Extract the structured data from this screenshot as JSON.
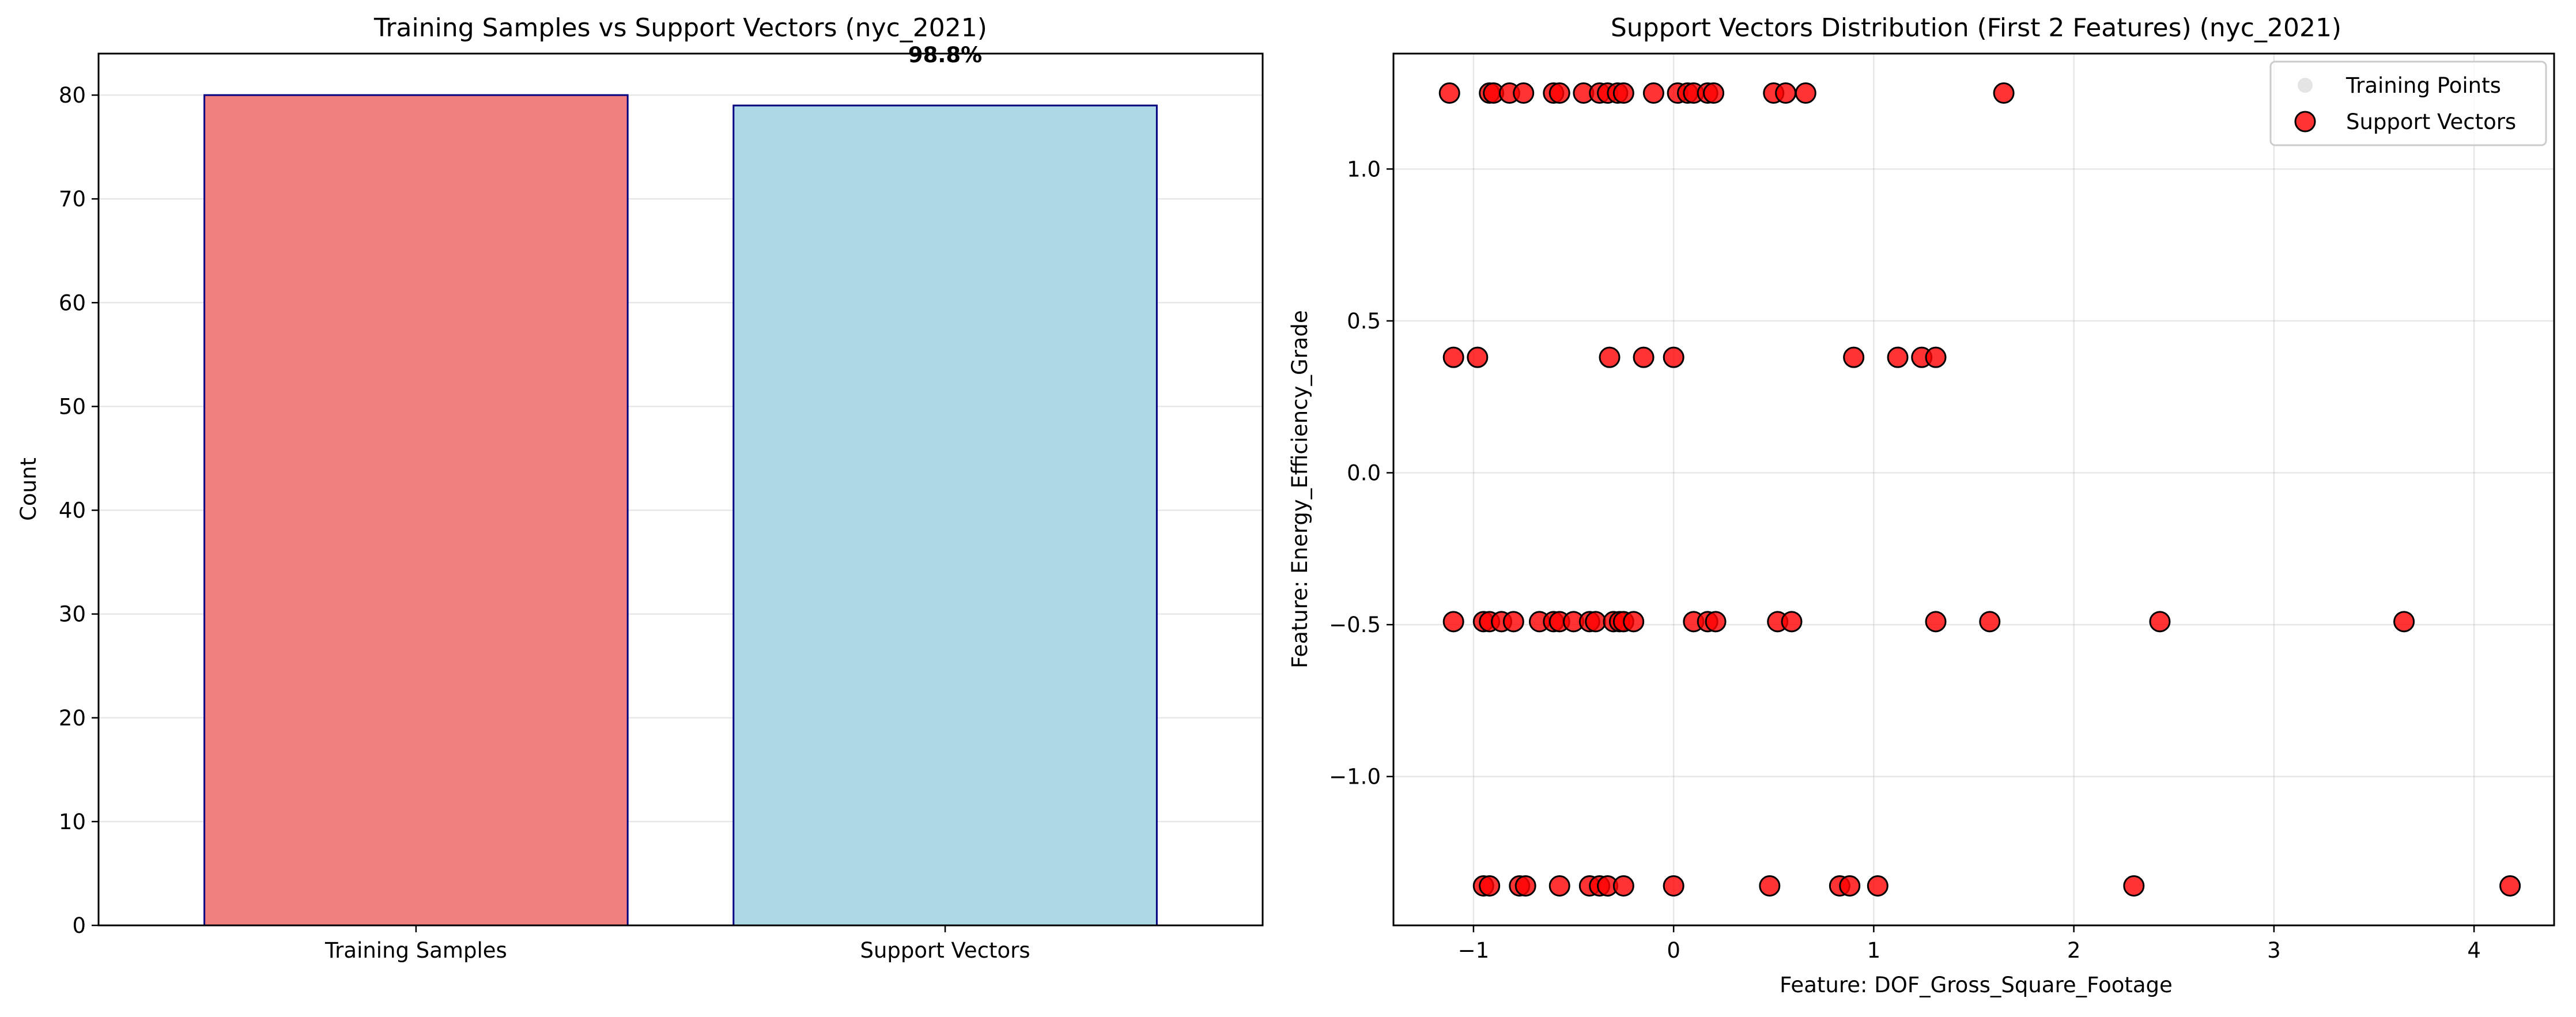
{
  "chart_data": [
    {
      "type": "bar",
      "title": "Training Samples vs Support Vectors (nyc_2021)",
      "xlabel": "",
      "ylabel": "Count",
      "categories": [
        "Training Samples",
        "Support Vectors"
      ],
      "values": [
        80,
        79
      ],
      "ylim": [
        0,
        84
      ],
      "yticks": [
        0,
        10,
        20,
        30,
        40,
        50,
        60,
        70,
        80
      ],
      "bar_colors": [
        "#f08080",
        "#add8e6"
      ],
      "bar_edge_color": "#000080",
      "annotation": "98.8%",
      "grid": "y"
    },
    {
      "type": "scatter",
      "title": "Support Vectors Distribution (First 2 Features) (nyc_2021)",
      "xlabel": "Feature: DOF_Gross_Square_Footage",
      "ylabel": "Feature: Energy_Efficiency_Grade",
      "xlim": [
        -1.4,
        4.4
      ],
      "ylim": [
        -1.49,
        1.38
      ],
      "xticks": [
        -1,
        0,
        1,
        2,
        3,
        4
      ],
      "yticks": [
        -1.0,
        -0.5,
        0.0,
        0.5,
        1.0
      ],
      "grid": true,
      "legend_position": "top-right",
      "series": [
        {
          "name": "Training Points",
          "color": "#d3d3d3",
          "points": []
        },
        {
          "name": "Support Vectors",
          "color": "#ff0000",
          "edge_color": "#000000",
          "points": [
            [
              -1.12,
              1.25
            ],
            [
              -0.92,
              1.25
            ],
            [
              -0.9,
              1.25
            ],
            [
              -0.82,
              1.25
            ],
            [
              -0.75,
              1.25
            ],
            [
              -0.6,
              1.25
            ],
            [
              -0.57,
              1.25
            ],
            [
              -0.45,
              1.25
            ],
            [
              -0.37,
              1.25
            ],
            [
              -0.33,
              1.25
            ],
            [
              -0.28,
              1.25
            ],
            [
              -0.25,
              1.25
            ],
            [
              -0.1,
              1.25
            ],
            [
              0.02,
              1.25
            ],
            [
              0.07,
              1.25
            ],
            [
              0.1,
              1.25
            ],
            [
              0.17,
              1.25
            ],
            [
              0.2,
              1.25
            ],
            [
              0.5,
              1.25
            ],
            [
              0.56,
              1.25
            ],
            [
              0.66,
              1.25
            ],
            [
              1.65,
              1.25
            ],
            [
              -1.1,
              0.38
            ],
            [
              -0.98,
              0.38
            ],
            [
              -0.32,
              0.38
            ],
            [
              -0.15,
              0.38
            ],
            [
              0.0,
              0.38
            ],
            [
              0.9,
              0.38
            ],
            [
              1.12,
              0.38
            ],
            [
              1.24,
              0.38
            ],
            [
              1.31,
              0.38
            ],
            [
              -1.1,
              -0.49
            ],
            [
              -0.95,
              -0.49
            ],
            [
              -0.92,
              -0.49
            ],
            [
              -0.86,
              -0.49
            ],
            [
              -0.8,
              -0.49
            ],
            [
              -0.67,
              -0.49
            ],
            [
              -0.6,
              -0.49
            ],
            [
              -0.57,
              -0.49
            ],
            [
              -0.5,
              -0.49
            ],
            [
              -0.42,
              -0.49
            ],
            [
              -0.39,
              -0.49
            ],
            [
              -0.3,
              -0.49
            ],
            [
              -0.27,
              -0.49
            ],
            [
              -0.25,
              -0.49
            ],
            [
              -0.2,
              -0.49
            ],
            [
              0.1,
              -0.49
            ],
            [
              0.17,
              -0.49
            ],
            [
              0.21,
              -0.49
            ],
            [
              0.52,
              -0.49
            ],
            [
              0.59,
              -0.49
            ],
            [
              1.31,
              -0.49
            ],
            [
              1.58,
              -0.49
            ],
            [
              2.43,
              -0.49
            ],
            [
              3.65,
              -0.49
            ],
            [
              -0.95,
              -1.36
            ],
            [
              -0.92,
              -1.36
            ],
            [
              -0.77,
              -1.36
            ],
            [
              -0.74,
              -1.36
            ],
            [
              -0.57,
              -1.36
            ],
            [
              -0.42,
              -1.36
            ],
            [
              -0.37,
              -1.36
            ],
            [
              -0.33,
              -1.36
            ],
            [
              -0.25,
              -1.36
            ],
            [
              0.0,
              -1.36
            ],
            [
              0.48,
              -1.36
            ],
            [
              0.83,
              -1.36
            ],
            [
              0.88,
              -1.36
            ],
            [
              1.02,
              -1.36
            ],
            [
              2.3,
              -1.36
            ],
            [
              4.18,
              -1.36
            ]
          ]
        }
      ]
    }
  ]
}
